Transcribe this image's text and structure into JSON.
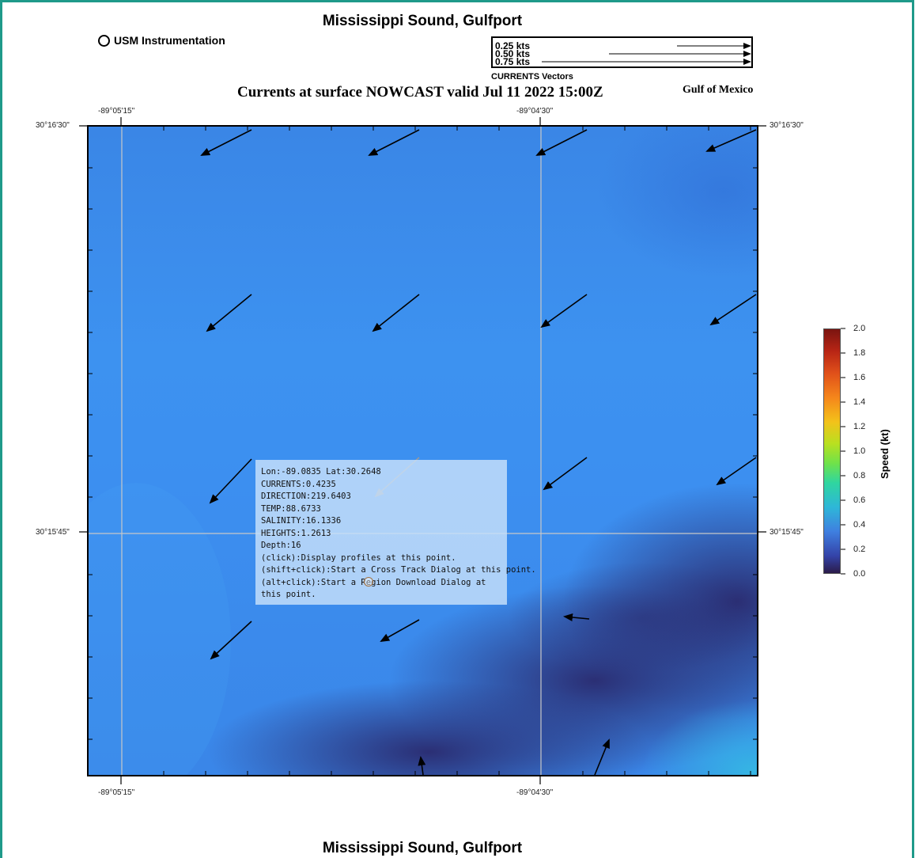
{
  "title_top": "Mississippi Sound, Gulfport",
  "title_bottom": "Mississippi Sound, Gulfport",
  "instrumentation_label": "USM Instrumentation",
  "vector_legend": {
    "entries": [
      "0.25 kts",
      "0.50 kts",
      "0.75 kts"
    ],
    "caption": "CURRENTS Vectors"
  },
  "subtitle": "Currents at surface NOWCAST valid Jul 11 2022 15:00Z",
  "region_label": "Gulf of Mexico",
  "axes": {
    "lon_ticks": [
      "-89°05'15\"",
      "-89°04'30\""
    ],
    "lat_ticks": [
      "30°16'30\"",
      "30°15'45\""
    ]
  },
  "tooltip": {
    "line_pos": "Lon:-89.0835 Lat:30.2648",
    "line_currents": "CURRENTS:0.4235",
    "line_direction": "DIRECTION:219.6403",
    "line_temp": "TEMP:88.6733",
    "line_salinity": "SALINITY:16.1336",
    "line_heights": "HEIGHTS:1.2613",
    "line_depth": "Depth:16",
    "line_click": "(click):Display profiles at this point.",
    "line_shift": "(shift+click):Start a Cross Track Dialog at this point.",
    "line_alt": "(alt+click):Start a Region Download Dialog at this point."
  },
  "colorbar": {
    "title": "Speed (kt)",
    "ticks": [
      "2.0",
      "1.8",
      "1.6",
      "1.4",
      "1.2",
      "1.0",
      "0.8",
      "0.6",
      "0.4",
      "0.2",
      "0.0"
    ],
    "min": 0.0,
    "max": 2.0
  },
  "colors": {
    "frame": "#1f9a8a",
    "water_mid": "#3d92f0",
    "water_slow": "#2e2f7a"
  }
}
